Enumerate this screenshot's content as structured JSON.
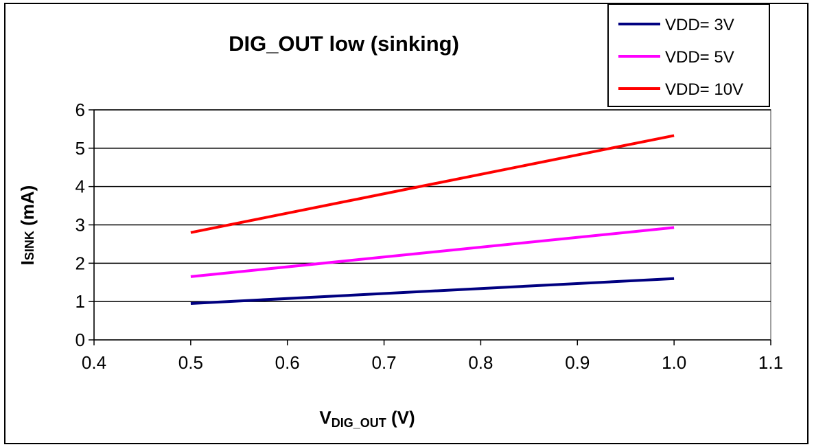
{
  "chart_data": {
    "type": "line",
    "title": "DIG_OUT low (sinking)",
    "xlabel": {
      "main": "V",
      "sub": "DIG_OUT",
      "unit": " (V)"
    },
    "ylabel": {
      "main": "I",
      "sub": "SINK",
      "unit": " (mA)"
    },
    "xlim": [
      0.4,
      1.1
    ],
    "ylim": [
      0,
      6
    ],
    "x_ticks": [
      "0.4",
      "0.5",
      "0.6",
      "0.7",
      "0.8",
      "0.9",
      "1.0",
      "1.1"
    ],
    "y_ticks": [
      "0",
      "1",
      "2",
      "3",
      "4",
      "5",
      "6"
    ],
    "grid": "horizontal",
    "legend_position": "top-right",
    "series": [
      {
        "name": "VDD= 3V",
        "color": "#000080",
        "points": [
          [
            0.5,
            0.95
          ],
          [
            1.0,
            1.6
          ]
        ]
      },
      {
        "name": "VDD= 5V",
        "color": "#ff00ff",
        "points": [
          [
            0.5,
            1.65
          ],
          [
            1.0,
            2.93
          ]
        ]
      },
      {
        "name": "VDD= 10V",
        "color": "#ff0000",
        "points": [
          [
            0.5,
            2.8
          ],
          [
            1.0,
            5.33
          ]
        ]
      }
    ]
  }
}
